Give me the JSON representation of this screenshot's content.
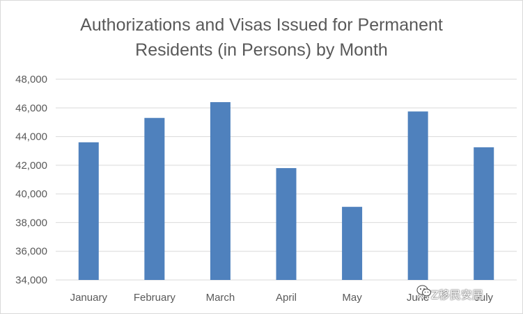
{
  "chart_data": {
    "type": "bar",
    "title_lines": [
      "Authorizations and Visas Issued for Permanent",
      "Residents (in Persons) by Month"
    ],
    "categories": [
      "January",
      "February",
      "March",
      "April",
      "May",
      "June",
      "July"
    ],
    "values": [
      43600,
      45300,
      46400,
      41800,
      39100,
      45750,
      43250
    ],
    "ylim": [
      34000,
      48000
    ],
    "yticks": [
      "34,000",
      "36,000",
      "38,000",
      "40,000",
      "42,000",
      "44,000",
      "46,000",
      "48,000"
    ],
    "ytick_values": [
      34000,
      36000,
      38000,
      40000,
      42000,
      44000,
      46000,
      48000
    ],
    "grid": true,
    "bar_color": "#4f81bd",
    "grid_color": "#d9d9d9"
  },
  "watermark": {
    "text": "XYZ移民安居",
    "icon": "wechat-icon"
  }
}
